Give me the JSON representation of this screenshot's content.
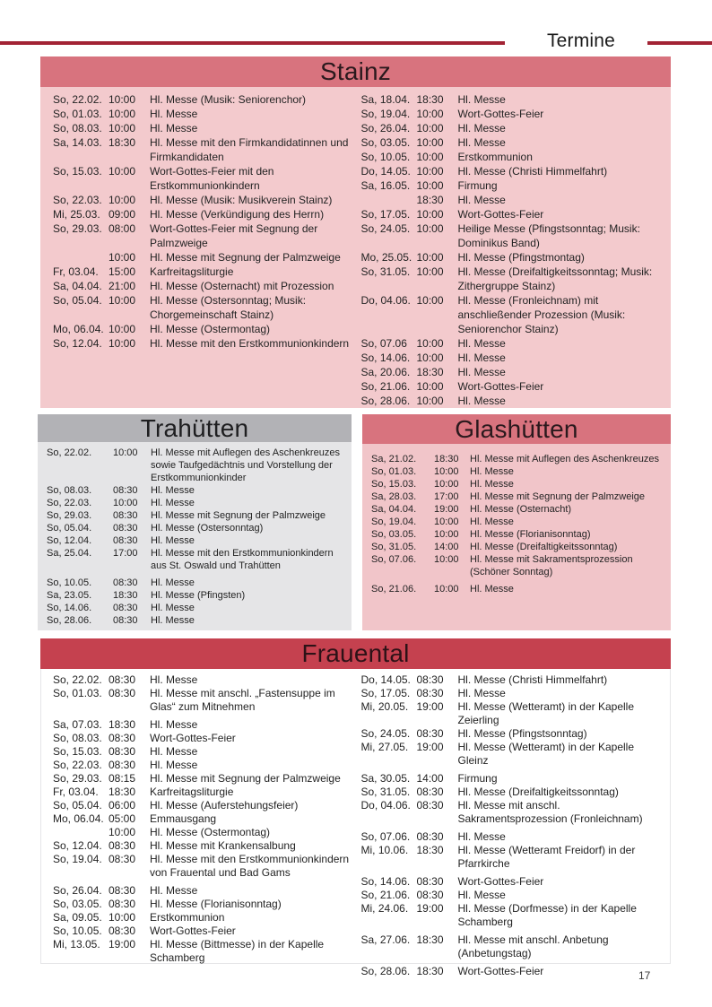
{
  "page": {
    "header_label": "Termine",
    "page_number": "17"
  },
  "colors": {
    "rule_red": "#a22334",
    "section_header_pink": "#d8737e",
    "section_body_pink": "#f3cacd",
    "section_header_gray": "#b2b2b6",
    "section_body_gray": "#e5e5e7",
    "section_header_red": "#c5414f"
  },
  "sections": [
    {
      "id": "stainz",
      "title": "Stainz",
      "style": "pink",
      "columns": [
        [
          {
            "date": "So, 22.02.",
            "time": "10:00",
            "text": "Hl. Messe (Musik: Seniorenchor)"
          },
          {
            "date": "So, 01.03.",
            "time": "10:00",
            "text": "Hl. Messe"
          },
          {
            "date": "So, 08.03.",
            "time": "10:00",
            "text": "Hl. Messe"
          },
          {
            "date": "Sa, 14.03.",
            "time": "18:30",
            "text": "Hl. Messe mit den Firmkandidatinnen und Firmkandidaten"
          },
          {
            "date": "So, 15.03.",
            "time": "10:00",
            "text": "Wort-Gottes-Feier mit den Erstkommunionkindern"
          },
          {
            "date": "So, 22.03.",
            "time": "10:00",
            "text": "Hl. Messe (Musik: Musikverein Stainz)"
          },
          {
            "date": "Mi, 25.03.",
            "time": "09:00",
            "text": "Hl. Messe (Verkündigung des Herrn)"
          },
          {
            "date": "So, 29.03.",
            "time": "08:00",
            "text": "Wort-Gottes-Feier mit Segnung der Palmzweige"
          },
          {
            "date": "",
            "time": "10:00",
            "text": "Hl. Messe mit Segnung der Palmzweige"
          },
          {
            "date": "Fr, 03.04.",
            "time": "15:00",
            "text": "Karfreitagsliturgie"
          },
          {
            "date": "Sa, 04.04.",
            "time": "21:00",
            "text": "Hl. Messe (Osternacht) mit Prozession"
          },
          {
            "date": "So, 05.04.",
            "time": "10:00",
            "text": "Hl. Messe (Ostersonntag; Musik: Chorgemeinschaft Stainz)"
          },
          {
            "date": "Mo, 06.04.",
            "time": "10:00",
            "text": "Hl. Messe (Ostermontag)"
          },
          {
            "date": "So, 12.04.",
            "time": "10:00",
            "text": "Hl. Messe mit den Erstkommunionkindern"
          }
        ],
        [
          {
            "date": "Sa, 18.04.",
            "time": "18:30",
            "text": "Hl. Messe"
          },
          {
            "date": "So, 19.04.",
            "time": "10:00",
            "text": "Wort-Gottes-Feier"
          },
          {
            "date": "So, 26.04.",
            "time": "10:00",
            "text": "Hl. Messe"
          },
          {
            "date": "So, 03.05.",
            "time": "10:00",
            "text": "Hl. Messe"
          },
          {
            "date": "So, 10.05.",
            "time": "10:00",
            "text": "Erstkommunion"
          },
          {
            "date": "Do, 14.05.",
            "time": "10:00",
            "text": "Hl. Messe (Christi Himmelfahrt)"
          },
          {
            "date": "Sa, 16.05.",
            "time": "10:00",
            "text": "Firmung"
          },
          {
            "date": "",
            "time": "18:30",
            "text": "Hl. Messe"
          },
          {
            "date": "So, 17.05.",
            "time": "10:00",
            "text": "Wort-Gottes-Feier"
          },
          {
            "date": "So, 24.05.",
            "time": "10:00",
            "text": "Heilige Messe (Pfingstsonntag; Musik: Dominikus Band)"
          },
          {
            "date": "Mo, 25.05.",
            "time": "10:00",
            "text": "Hl. Messe (Pfingstmontag)"
          },
          {
            "date": "So, 31.05.",
            "time": "10:00",
            "text": "Hl. Messe (Dreifaltigkeitssonntag; Musik: Zithergruppe Stainz)"
          },
          {
            "date": "Do, 04.06.",
            "time": "10:00",
            "text": "Hl. Messe (Fronleichnam) mit anschließender Prozession (Musik: Seniorenchor Stainz)"
          },
          {
            "date": "So, 07.06",
            "time": "10:00",
            "text": "Hl. Messe"
          },
          {
            "date": "So, 14.06.",
            "time": "10:00",
            "text": "Hl. Messe"
          },
          {
            "date": "Sa, 20.06.",
            "time": "18:30",
            "text": "Hl. Messe"
          },
          {
            "date": "So, 21.06.",
            "time": "10:00",
            "text": "Wort-Gottes-Feier"
          },
          {
            "date": "So, 28.06.",
            "time": "10:00",
            "text": "Hl. Messe"
          }
        ]
      ]
    },
    {
      "id": "trahuetten",
      "title": "Trahütten",
      "style": "gray",
      "columns": [
        [
          {
            "date": "So, 22.02.",
            "time": "10:00",
            "text": "Hl. Messe mit Auflegen des Aschenkreuzes sowie Taufgedächtnis und Vorstellung der Erstkommunionkinder"
          },
          {
            "date": "So, 08.03.",
            "time": "08:30",
            "text": "Hl. Messe"
          },
          {
            "date": "So, 22.03.",
            "time": "10:00",
            "text": "Hl. Messe"
          },
          {
            "date": "So, 29.03.",
            "time": "08:30",
            "text": "Hl. Messe mit Segnung der Palmzweige"
          },
          {
            "date": "So, 05.04.",
            "time": "08:30",
            "text": "Hl. Messe (Ostersonntag)"
          },
          {
            "date": "So, 12.04.",
            "time": "08:30",
            "text": "Hl. Messe"
          },
          {
            "date": "Sa, 25.04.",
            "time": "17:00",
            "text": "Hl. Messe mit den Erstkommunionkindern aus St. Oswald und Trahütten"
          },
          {
            "date": "So, 10.05.",
            "time": "08:30",
            "text": "Hl. Messe",
            "gap_before": true
          },
          {
            "date": "Sa, 23.05.",
            "time": "18:30",
            "text": "Hl. Messe (Pfingsten)"
          },
          {
            "date": "So, 14.06.",
            "time": "08:30",
            "text": "Hl. Messe"
          },
          {
            "date": "So, 28.06.",
            "time": "08:30",
            "text": "Hl. Messe"
          }
        ]
      ]
    },
    {
      "id": "glashuetten",
      "title": "Glashütten",
      "style": "pink",
      "columns": [
        [
          {
            "date": "Sa, 21.02.",
            "time": "18:30",
            "text": "Hl. Messe mit Auflegen des Aschenkreuzes"
          },
          {
            "date": "So, 01.03.",
            "time": "10:00",
            "text": "Hl. Messe"
          },
          {
            "date": "So, 15.03.",
            "time": "10:00",
            "text": "Hl. Messe"
          },
          {
            "date": "Sa, 28.03.",
            "time": "17:00",
            "text": "Hl. Messe mit Segnung der Palmzweige"
          },
          {
            "date": "Sa, 04.04.",
            "time": "19:00",
            "text": "Hl. Messe (Osternacht)"
          },
          {
            "date": "So, 19.04.",
            "time": "10:00",
            "text": "Hl. Messe"
          },
          {
            "date": "So, 03.05.",
            "time": "10:00",
            "text": "Hl. Messe (Florianisonntag)"
          },
          {
            "date": "So, 31.05.",
            "time": "14:00",
            "text": "Hl. Messe (Dreifaltigkeitssonntag)"
          },
          {
            "date": "So, 07.06.",
            "time": "10:00",
            "text": "Hl. Messe mit Sakramentsprozession (Schöner Sonntag)"
          },
          {
            "date": "So, 21.06.",
            "time": "10:00",
            "text": "Hl. Messe",
            "gap_before": true
          }
        ]
      ]
    },
    {
      "id": "frauental",
      "title": "Frauental",
      "style": "red",
      "columns": [
        [
          {
            "date": "So, 22.02.",
            "time": "08:30",
            "text": "Hl. Messe"
          },
          {
            "date": "So, 01.03.",
            "time": "08:30",
            "text": "Hl. Messe mit anschl. „Fastensuppe im Glas“ zum Mitnehmen"
          },
          {
            "date": "Sa, 07.03.",
            "time": "18:30",
            "text": "Hl. Messe",
            "gap_before": true
          },
          {
            "date": "So, 08.03.",
            "time": "08:30",
            "text": "Wort-Gottes-Feier"
          },
          {
            "date": "So, 15.03.",
            "time": "08:30",
            "text": "Hl. Messe"
          },
          {
            "date": "So, 22.03.",
            "time": "08:30",
            "text": "Hl. Messe"
          },
          {
            "date": "So, 29.03.",
            "time": "08:15",
            "text": "Hl. Messe mit Segnung der Palmzweige"
          },
          {
            "date": "Fr, 03.04.",
            "time": "18:30",
            "text": "Karfreitagsliturgie"
          },
          {
            "date": "So, 05.04.",
            "time": "06:00",
            "text": "Hl. Messe (Auferstehungsfeier)"
          },
          {
            "date": "Mo, 06.04.",
            "time": "05:00",
            "text": "Emmausgang"
          },
          {
            "date": "",
            "time": "10:00",
            "text": "Hl. Messe (Ostermontag)"
          },
          {
            "date": "So, 12.04.",
            "time": "08:30",
            "text": "Hl. Messe mit Krankensalbung"
          },
          {
            "date": "So, 19.04.",
            "time": "08:30",
            "text": "Hl. Messe mit den Erstkommunionkindern von Frauental und Bad Gams"
          },
          {
            "date": "So, 26.04.",
            "time": "08:30",
            "text": "Hl. Messe",
            "gap_before": true
          },
          {
            "date": "So, 03.05.",
            "time": "08:30",
            "text": "Hl. Messe (Florianisonntag)"
          },
          {
            "date": "Sa, 09.05.",
            "time": "10:00",
            "text": "Erstkommunion"
          },
          {
            "date": "So, 10.05.",
            "time": "08:30",
            "text": "Wort-Gottes-Feier"
          },
          {
            "date": "Mi, 13.05.",
            "time": "19:00",
            "text": "Hl. Messe (Bittmesse) in der Kapelle Schamberg"
          }
        ],
        [
          {
            "date": "Do, 14.05.",
            "time": "08:30",
            "text": "Hl. Messe (Christi Himmelfahrt)"
          },
          {
            "date": "So, 17.05.",
            "time": "08:30",
            "text": "Hl. Messe"
          },
          {
            "date": "Mi, 20.05.",
            "time": "19:00",
            "text": "Hl. Messe (Wetteramt) in der Kapelle Zeierling"
          },
          {
            "date": "So, 24.05.",
            "time": "08:30",
            "text": "Hl. Messe (Pfingstsonntag)"
          },
          {
            "date": "Mi, 27.05.",
            "time": "19:00",
            "text": "Hl. Messe (Wetteramt) in der Kapelle Gleinz"
          },
          {
            "date": "Sa, 30.05.",
            "time": "14:00",
            "text": "Firmung",
            "gap_before": true
          },
          {
            "date": "So, 31.05.",
            "time": "08:30",
            "text": "Hl. Messe (Dreifaltigkeitssonntag)"
          },
          {
            "date": "Do, 04.06.",
            "time": "08:30",
            "text": "Hl. Messe mit anschl. Sakramentsprozession (Fronleichnam)"
          },
          {
            "date": "So, 07.06.",
            "time": "08:30",
            "text": "Hl. Messe",
            "gap_before": true
          },
          {
            "date": "Mi, 10.06.",
            "time": "18:30",
            "text": "Hl. Messe (Wetteramt Freidorf) in der Pfarrkirche"
          },
          {
            "date": "So, 14.06.",
            "time": "08:30",
            "text": "Wort-Gottes-Feier",
            "gap_before": true
          },
          {
            "date": "So, 21.06.",
            "time": "08:30",
            "text": "Hl. Messe"
          },
          {
            "date": "Mi, 24.06.",
            "time": "19:00",
            "text": "Hl. Messe (Dorfmesse) in der Kapelle Schamberg"
          },
          {
            "date": "Sa, 27.06.",
            "time": "18:30",
            "text": "Hl. Messe mit anschl. Anbetung (Anbetungstag)",
            "gap_before": true
          },
          {
            "date": "So, 28.06.",
            "time": "18:30",
            "text": "Wort-Gottes-Feier",
            "gap_before": true
          }
        ]
      ]
    }
  ]
}
